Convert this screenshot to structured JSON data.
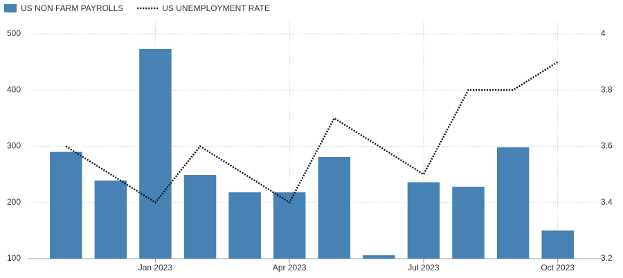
{
  "chart_data": {
    "type": "bar_line",
    "categories": [
      null,
      null,
      "Jan 2023",
      null,
      null,
      "Apr 2023",
      null,
      null,
      "Jul 2023",
      null,
      null,
      "Oct 2023"
    ],
    "series": [
      {
        "name": "US NON FARM PAYROLLS",
        "type": "bar",
        "color": "#4682b4",
        "values": [
          290,
          239,
          473,
          249,
          218,
          218,
          281,
          106,
          236,
          228,
          298,
          150
        ]
      },
      {
        "name": "US UNEMPLOYMENT RATE",
        "type": "line",
        "axis": "y2",
        "color": "#111111",
        "values": [
          3.6,
          3.5,
          3.4,
          3.6,
          3.5,
          3.4,
          3.7,
          3.6,
          3.5,
          3.8,
          3.8,
          3.9
        ]
      }
    ],
    "ylim": [
      100,
      500
    ],
    "yticks": [
      100,
      200,
      300,
      400,
      500
    ],
    "y2lim": [
      3.2,
      4
    ],
    "y2ticks": [
      3.2,
      3.4,
      3.6,
      3.8,
      4
    ],
    "grid": true
  }
}
